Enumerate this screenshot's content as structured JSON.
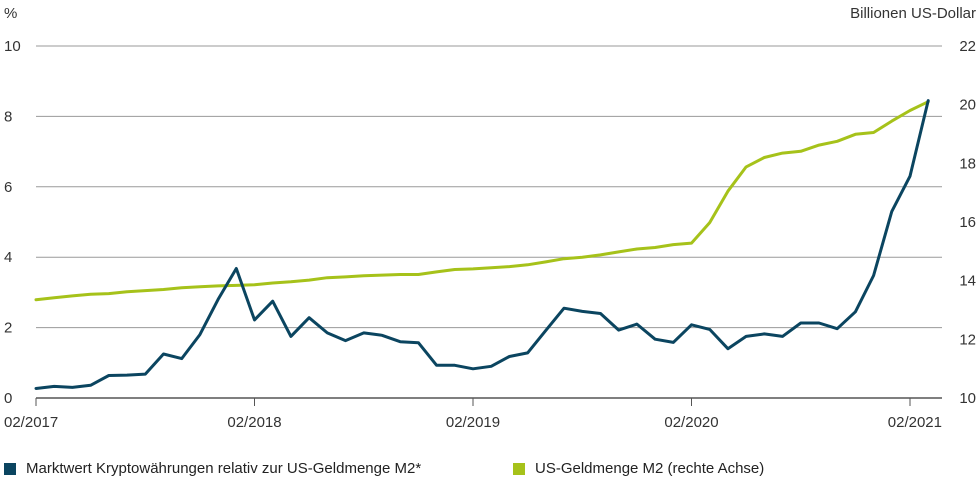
{
  "chart_data": {
    "type": "line",
    "left_axis_unit": "%",
    "right_axis_unit": "Billionen US-Dollar",
    "left_ylim": [
      0,
      10
    ],
    "left_ticks": [
      "0",
      "2",
      "4",
      "6",
      "8",
      "10"
    ],
    "right_ylim": [
      10,
      22
    ],
    "right_ticks": [
      "10",
      "12",
      "14",
      "16",
      "18",
      "20",
      "22"
    ],
    "x_ticks": [
      "02/2017",
      "02/2018",
      "02/2019",
      "02/2020",
      "02/2021"
    ],
    "grid": "horizontal",
    "legend_position": "bottom",
    "series": [
      {
        "name": "Marktwert Kryptowährungen relativ zur US-Geldmenge M2*",
        "axis": "left",
        "color": "#0b4560",
        "values": [
          0.27,
          0.33,
          0.3,
          0.36,
          0.64,
          0.65,
          0.68,
          1.25,
          1.12,
          1.8,
          2.8,
          3.68,
          2.22,
          2.75,
          1.75,
          2.28,
          1.85,
          1.63,
          1.85,
          1.78,
          1.6,
          1.57,
          0.93,
          0.93,
          0.83,
          0.9,
          1.18,
          1.28,
          1.92,
          2.55,
          2.46,
          2.4,
          1.93,
          2.1,
          1.67,
          1.58,
          2.08,
          1.95,
          1.4,
          1.75,
          1.82,
          1.75,
          2.13,
          2.13,
          1.97,
          2.45,
          3.48,
          5.3,
          6.3,
          8.45
        ]
      },
      {
        "name": "US-Geldmenge M2 (rechte Achse)",
        "axis": "right",
        "color": "#a6c21a",
        "values": [
          13.35,
          13.42,
          13.48,
          13.54,
          13.56,
          13.62,
          13.66,
          13.7,
          13.76,
          13.79,
          13.82,
          13.84,
          13.86,
          13.92,
          13.96,
          14.02,
          14.1,
          14.13,
          14.17,
          14.19,
          14.21,
          14.21,
          14.3,
          14.38,
          14.4,
          14.44,
          14.48,
          14.54,
          14.64,
          14.75,
          14.8,
          14.88,
          14.98,
          15.08,
          15.13,
          15.23,
          15.28,
          15.98,
          17.05,
          17.88,
          18.2,
          18.35,
          18.41,
          18.62,
          18.75,
          18.99,
          19.05,
          19.44,
          19.8,
          20.1
        ]
      }
    ]
  }
}
